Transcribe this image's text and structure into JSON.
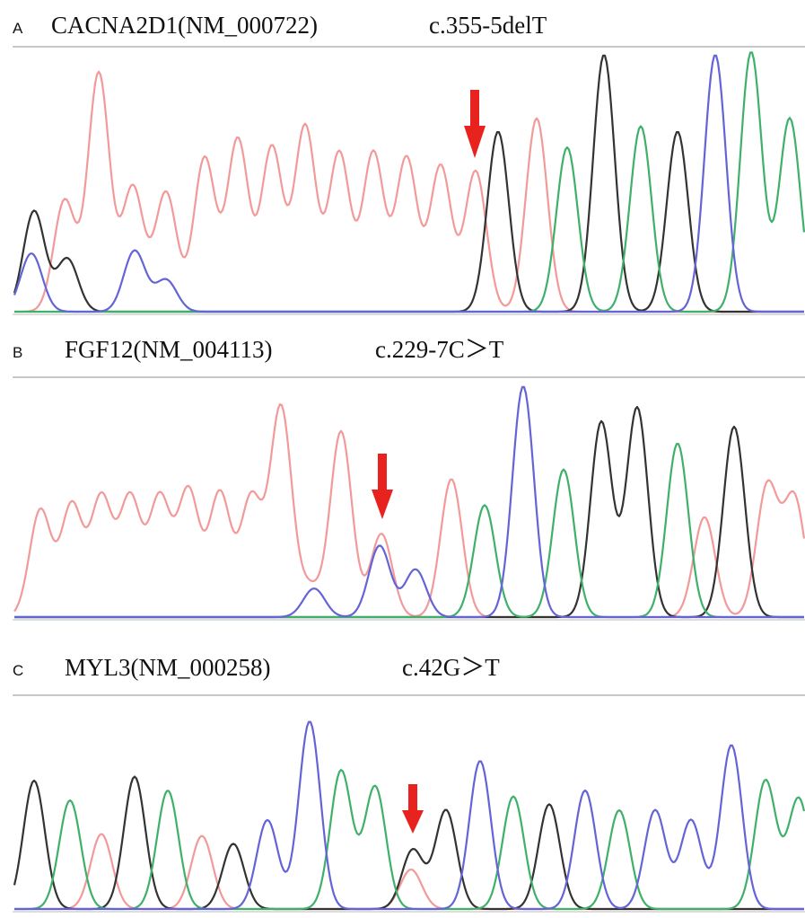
{
  "panels": [
    {
      "letter": "A",
      "gene": "CACNA2D1(NM_000722)",
      "variant": "c.355-5delT"
    },
    {
      "letter": "B",
      "gene": "FGF12(NM_004113)",
      "variant": "c.229-7C＞T"
    },
    {
      "letter": "C",
      "gene": "MYL3(NM_000258)",
      "variant": "c.42G＞T"
    }
  ]
}
